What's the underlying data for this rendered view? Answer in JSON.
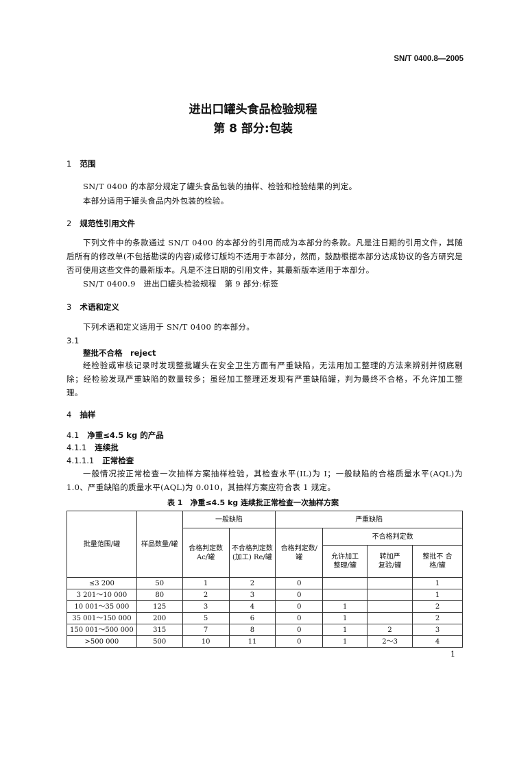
{
  "header": {
    "standard_no": "SN/T 0400.8—2005"
  },
  "title": {
    "line1": "进出口罐头食品检验规程",
    "line2": "第 8 部分:包装"
  },
  "sections": {
    "s1": {
      "num": "1",
      "title": "范围",
      "p1": "SN/T 0400 的本部分规定了罐头食品包装的抽样、检验和检验结果的判定。",
      "p2": "本部分适用于罐头食品内外包装的检验。"
    },
    "s2": {
      "num": "2",
      "title": "规范性引用文件",
      "p1": "下列文件中的条款通过 SN/T 0400 的本部分的引用而成为本部分的条款。凡是注日期的引用文件，其随后所有的修改单(不包括勘误的内容)或修订版均不适用于本部分，然而，鼓励根据本部分达成协议的各方研究是否可使用这些文件的最新版本。凡是不注日期的引用文件，其最新版本适用于本部分。",
      "ref": "SN/T 0400.9　进出口罐头检验规程　第 9 部分:标签"
    },
    "s3": {
      "num": "3",
      "title": "术语和定义",
      "p1": "下列术语和定义适用于 SN/T 0400 的本部分。",
      "sub_num": "3.1",
      "term": "整批不合格　reject",
      "def": "经检验或审核记录时发现整批罐头在安全卫生方面有严重缺陷，无法用加工整理的方法来辨别并彻底剔除；经检验发现严重缺陷的数量较多；虽经加工整理还发现有严重缺陷罐，判为最终不合格，不允许加工整理。"
    },
    "s4": {
      "num": "4",
      "title": "抽样",
      "s41": {
        "num": "4.1",
        "title": "净重≤4.5 kg 的产品"
      },
      "s411": {
        "num": "4.1.1",
        "title": "连续批"
      },
      "s4111": {
        "num": "4.1.1.1",
        "title": "正常检查"
      },
      "p1": "一般情况按正常检查一次抽样方案抽样检验，其检查水平(IL)为 I；一般缺陷的合格质量水平(AQL)为 1.0、严重缺陷的质量水平(AQL)为 0.010，其抽样方案应符合表 1 规定。"
    }
  },
  "table1": {
    "caption": "表 1　净重≤4.5 kg 连续批正常检查一次抽样方案",
    "headers": {
      "batch_range": "批量范围/罐",
      "sample_size": "样品数量/罐",
      "general_defect": "一般缺陷",
      "ac": "合格判定数 Ac/罐",
      "re": "不合格判定数 (加工) Re/罐",
      "critical_defect": "严重缺陷",
      "crit_ac": "合格判定数/罐",
      "crit_re": "不合格判定数",
      "rework": "允许加工 整理/罐",
      "reinspect": "转加严 复验/罐",
      "reject": "整批不 合格/罐"
    },
    "rows": [
      [
        "≤3 200",
        "50",
        "1",
        "2",
        "0",
        "",
        "",
        "1"
      ],
      [
        "3 201～10 000",
        "80",
        "2",
        "3",
        "0",
        "",
        "",
        "1"
      ],
      [
        "10 001～35 000",
        "125",
        "3",
        "4",
        "0",
        "1",
        "",
        "2"
      ],
      [
        "35 001～150 000",
        "200",
        "5",
        "6",
        "0",
        "1",
        "",
        "2"
      ],
      [
        "150 001～500 000",
        "315",
        "7",
        "8",
        "0",
        "1",
        "2",
        "3"
      ],
      [
        ">500 000",
        "500",
        "10",
        "11",
        "0",
        "1",
        "2～3",
        "4"
      ]
    ]
  },
  "page_number": "1"
}
